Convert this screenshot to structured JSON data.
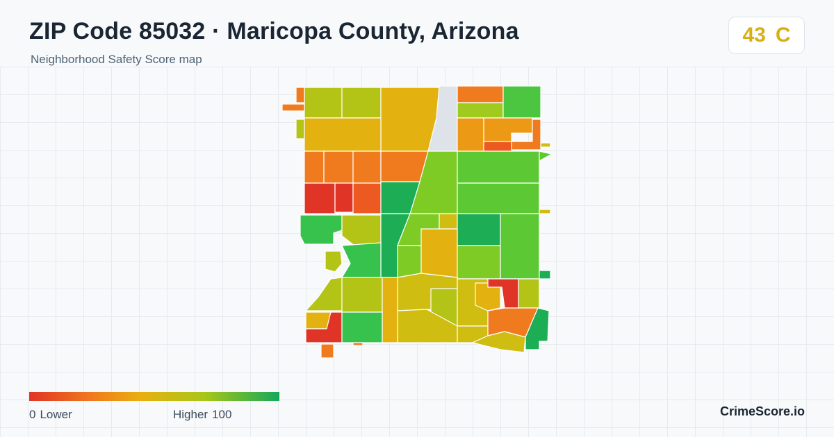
{
  "header": {
    "title": "ZIP Code 85032 · Maricopa County, Arizona",
    "subtitle": "Neighborhood Safety Score map"
  },
  "score": {
    "value": "43",
    "grade": "C",
    "color": "#d8b014"
  },
  "legend": {
    "low_value": "0",
    "low_label": "Lower",
    "high_label": "Higher",
    "high_value": "100",
    "colors": [
      "#e03427",
      "#f07a1e",
      "#e8b010",
      "#a8c618",
      "#14a85a"
    ]
  },
  "brand": "CrimeScore.io",
  "map": {
    "region_colors": {
      "red": "#e03427",
      "red_orange": "#ec5a22",
      "orange": "#f07a1e",
      "orange_yellow": "#ec9a16",
      "yellow": "#e4b210",
      "yellow_olive": "#cfbd12",
      "olive": "#b4c416",
      "yellow_green": "#a8c618",
      "light_green": "#7ecb26",
      "green": "#5cc834",
      "mid_green": "#36c24c",
      "dark_green": "#1cad55",
      "no_data": "#dde3e8"
    }
  }
}
